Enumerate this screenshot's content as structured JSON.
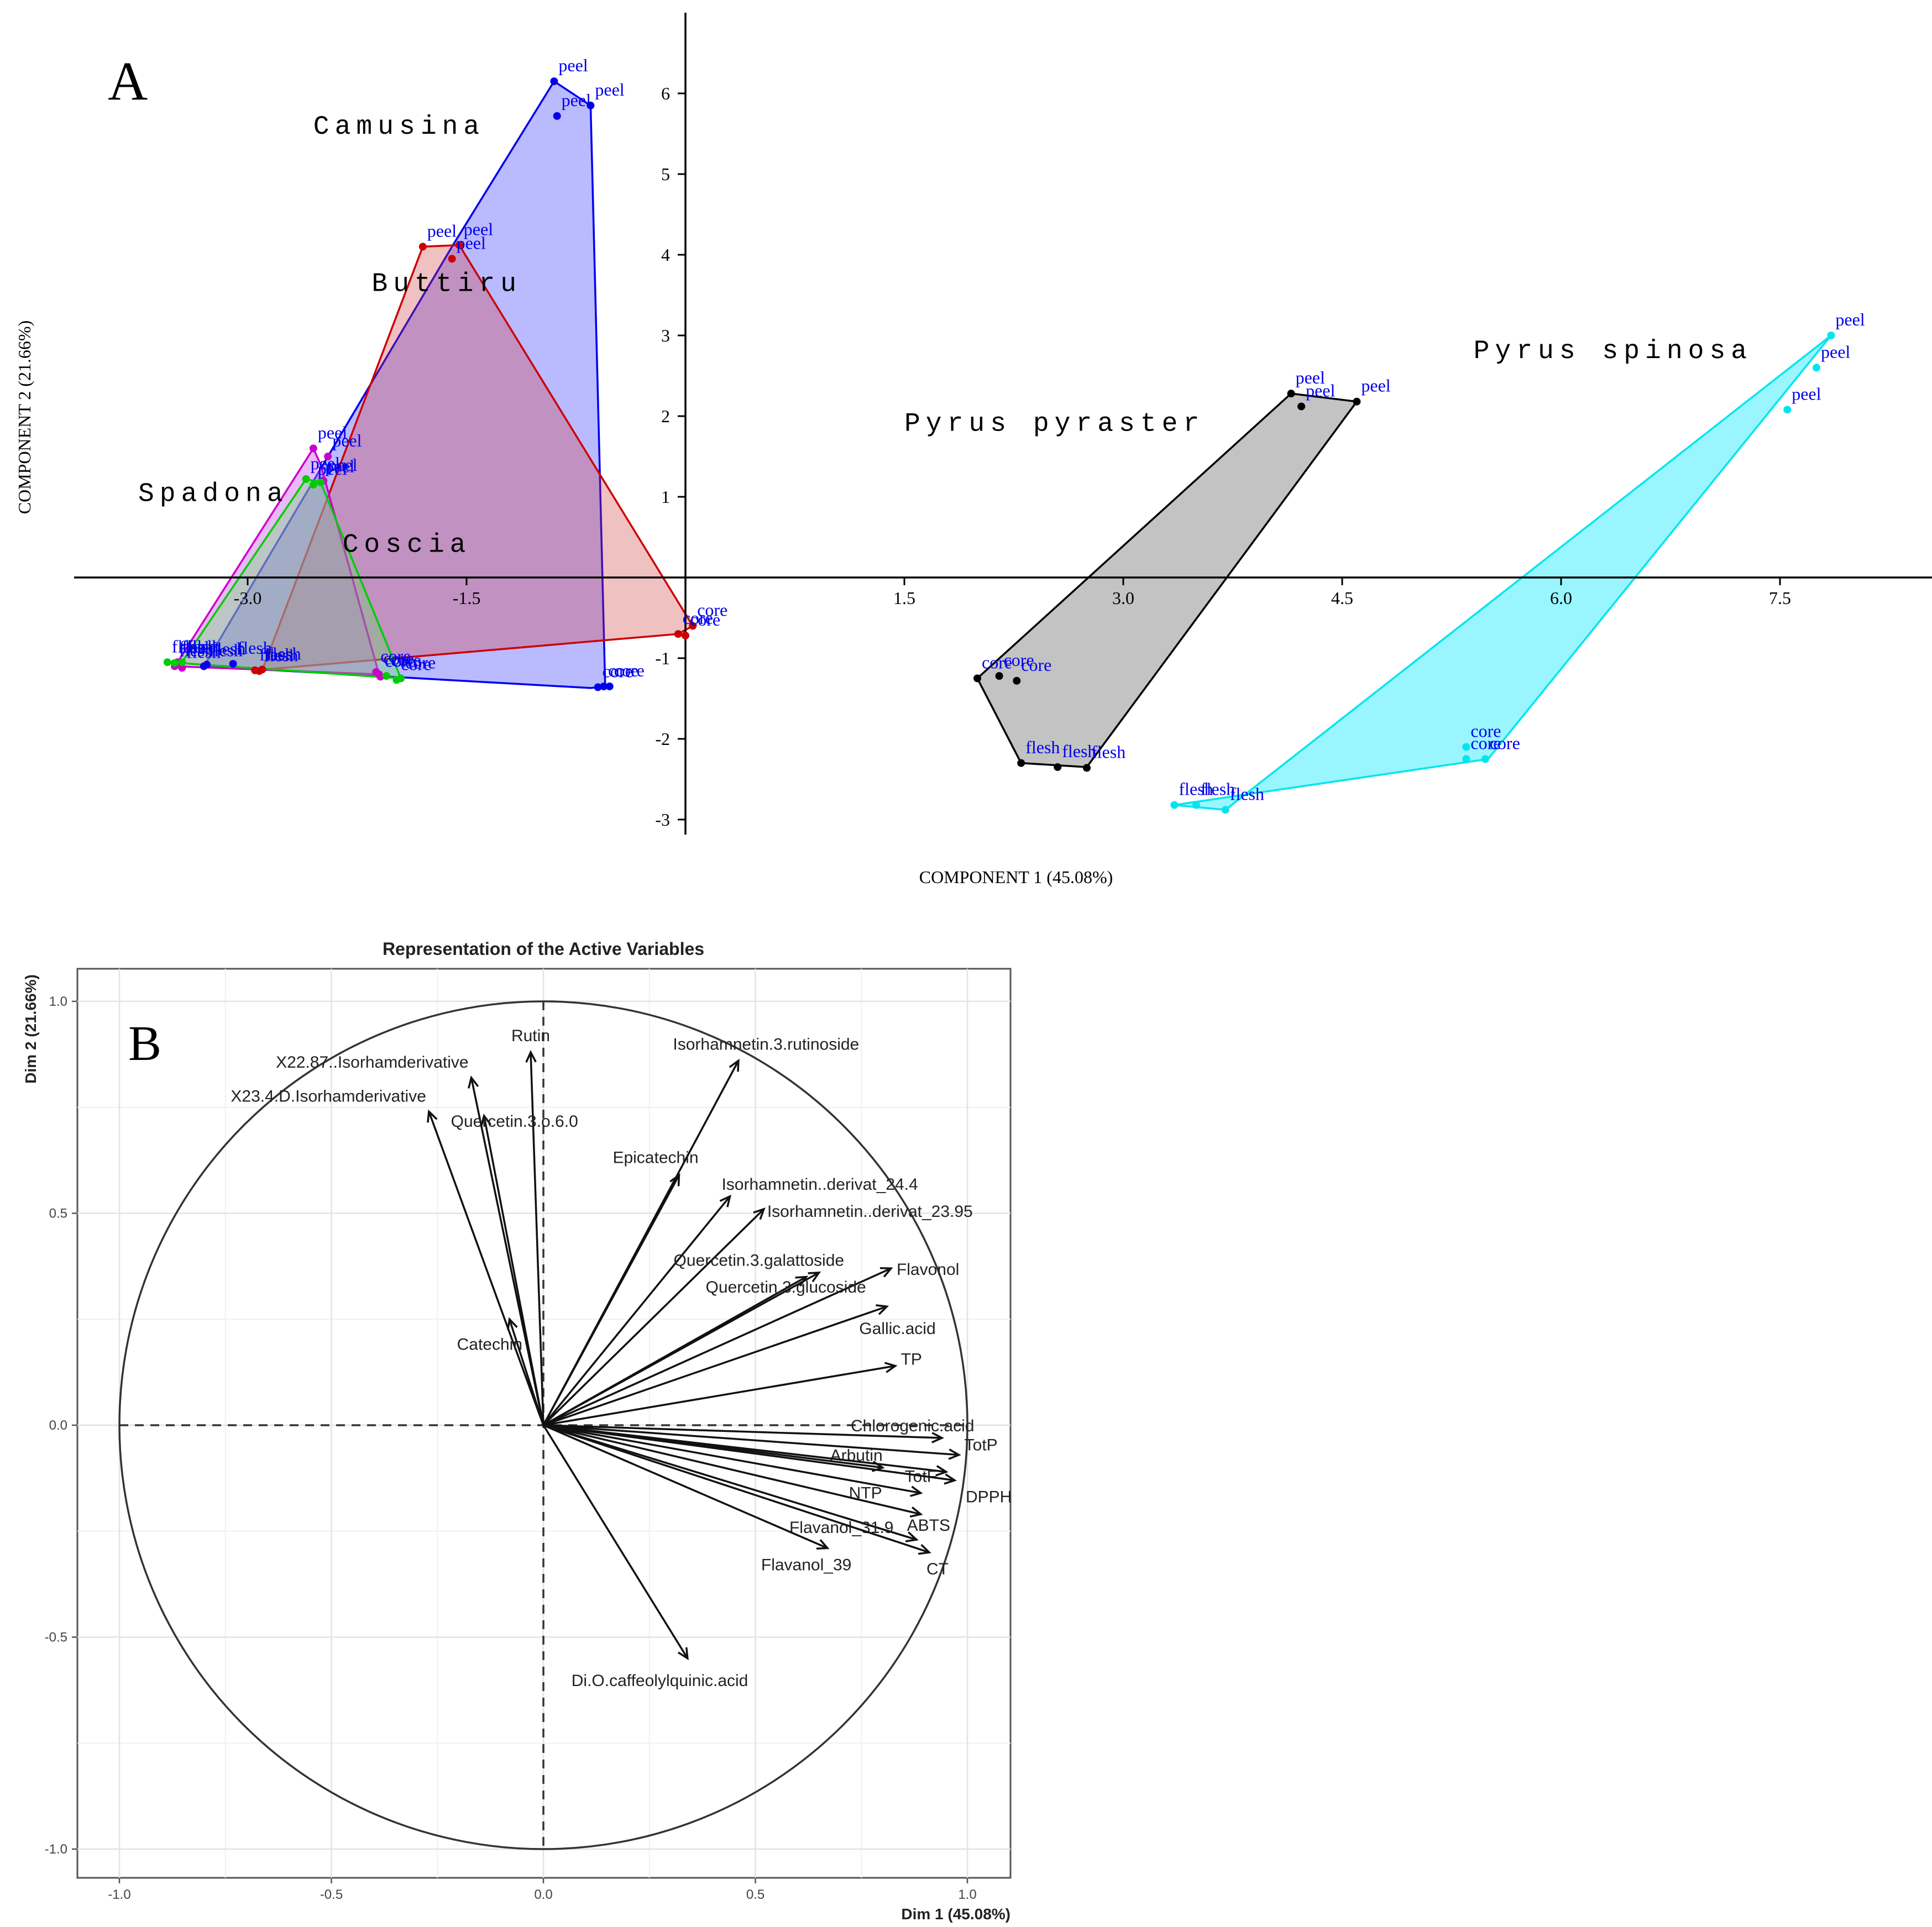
{
  "figure": {
    "panel_a_letter": "A",
    "panel_b_letter": "B"
  },
  "chart_data": [
    {
      "type": "scatter",
      "xlabel": "COMPONENT 1 (45.08%)",
      "ylabel": "COMPONENT 2 (21.66%)",
      "xlim": [
        -4.0,
        8.5
      ],
      "ylim": [
        -3.05,
        7.0
      ],
      "x_ticks": [
        -3.0,
        -1.5,
        1.5,
        3.0,
        4.5,
        6.0,
        7.5
      ],
      "x_tick_labels": [
        "-3.0",
        "-1.5",
        "1.5",
        "3.0",
        "4.5",
        "6.0",
        "7.5"
      ],
      "y_ticks": [
        -3,
        -2,
        -1,
        1,
        2,
        3,
        4,
        5,
        6
      ],
      "y_tick_labels": [
        "-3",
        "-2",
        "-1",
        "1",
        "2",
        "3",
        "4",
        "5",
        "6"
      ],
      "groups": [
        {
          "name": "Camusina",
          "color": "#0000ee",
          "fill": "#8c8cff",
          "fill_opacity": 0.6,
          "label_x": -2.55,
          "label_y": 5.5,
          "hull": [
            [
              -0.9,
              6.15
            ],
            [
              -0.65,
              5.85
            ],
            [
              -0.55,
              -1.35
            ],
            [
              -0.65,
              -1.37
            ],
            [
              -3.3,
              -1.1
            ],
            [
              -1.6,
              4.1
            ]
          ],
          "points": [
            {
              "x": -0.9,
              "y": 6.15,
              "label": "peel"
            },
            {
              "x": -0.65,
              "y": 5.85,
              "label": "peel"
            },
            {
              "x": -0.88,
              "y": 5.72,
              "label": "peel"
            },
            {
              "x": -0.6,
              "y": -1.36,
              "label": "core"
            },
            {
              "x": -0.56,
              "y": -1.35,
              "label": "core"
            },
            {
              "x": -0.52,
              "y": -1.35,
              "label": "core"
            },
            {
              "x": -3.3,
              "y": -1.1,
              "label": "flesh"
            },
            {
              "x": -3.28,
              "y": -1.08,
              "label": "flesh"
            },
            {
              "x": -3.1,
              "y": -1.07,
              "label": "flesh"
            }
          ]
        },
        {
          "name": "Buttiru",
          "color": "#cc0000",
          "fill": "#cc3333",
          "fill_opacity": 0.3,
          "label_x": -2.15,
          "label_y": 3.55,
          "hull": [
            [
              -1.8,
              4.1
            ],
            [
              -1.55,
              4.12
            ],
            [
              0.05,
              -0.6
            ],
            [
              -0.05,
              -0.7
            ],
            [
              -2.95,
              -1.15
            ],
            [
              -2.9,
              -1.15
            ]
          ],
          "points": [
            {
              "x": -1.8,
              "y": 4.1,
              "label": "peel"
            },
            {
              "x": -1.55,
              "y": 4.12,
              "label": "peel"
            },
            {
              "x": -1.6,
              "y": 3.95,
              "label": "peel"
            },
            {
              "x": 0.05,
              "y": -0.6,
              "label": "core"
            },
            {
              "x": -0.05,
              "y": -0.7,
              "label": "core"
            },
            {
              "x": 0.0,
              "y": -0.72,
              "label": "core"
            },
            {
              "x": -2.95,
              "y": -1.15,
              "label": "flesh"
            },
            {
              "x": -2.9,
              "y": -1.14,
              "label": "flesh"
            },
            {
              "x": -2.92,
              "y": -1.16,
              "label": "flesh"
            }
          ]
        },
        {
          "name": "Spadona",
          "color": "#cc00cc",
          "fill": "#cc66ee",
          "fill_opacity": 0.45,
          "label_x": -3.75,
          "label_y": 0.95,
          "hull": [
            [
              -2.55,
              1.6
            ],
            [
              -2.5,
              1.4
            ],
            [
              -2.1,
              -1.2
            ],
            [
              -3.5,
              -1.1
            ],
            [
              -3.48,
              -1.05
            ]
          ],
          "points": [
            {
              "x": -2.55,
              "y": 1.6,
              "label": "peel"
            },
            {
              "x": -2.45,
              "y": 1.5,
              "label": "peel"
            },
            {
              "x": -2.48,
              "y": 1.2,
              "label": "peel"
            },
            {
              "x": -2.1,
              "y": -1.2,
              "label": "core"
            },
            {
              "x": -2.12,
              "y": -1.17,
              "label": "core"
            },
            {
              "x": -2.09,
              "y": -1.23,
              "label": "core"
            },
            {
              "x": -3.5,
              "y": -1.1,
              "label": "flesh"
            },
            {
              "x": -3.48,
              "y": -1.05,
              "label": "flesh"
            },
            {
              "x": -3.45,
              "y": -1.12,
              "label": "flesh"
            }
          ]
        },
        {
          "name": "Coscia",
          "color": "#00cc00",
          "fill": "#66dd66",
          "fill_opacity": 0.35,
          "label_x": -2.35,
          "label_y": 0.32,
          "hull": [
            [
              -2.6,
              1.22
            ],
            [
              -2.5,
              1.18
            ],
            [
              -1.95,
              -1.25
            ],
            [
              -3.55,
              -1.05
            ],
            [
              -3.45,
              -1.05
            ]
          ],
          "points": [
            {
              "x": -2.6,
              "y": 1.22,
              "label": "peel"
            },
            {
              "x": -2.5,
              "y": 1.18,
              "label": "peel"
            },
            {
              "x": -2.55,
              "y": 1.15,
              "label": "peel"
            },
            {
              "x": -1.95,
              "y": -1.25,
              "label": "core"
            },
            {
              "x": -2.05,
              "y": -1.22,
              "label": "core"
            },
            {
              "x": -1.98,
              "y": -1.27,
              "label": "core"
            },
            {
              "x": -3.55,
              "y": -1.05,
              "label": "flesh"
            },
            {
              "x": -3.5,
              "y": -1.06,
              "label": "flesh"
            },
            {
              "x": -3.45,
              "y": -1.05,
              "label": "flesh"
            }
          ]
        },
        {
          "name": "Pyrus pyraster",
          "color": "#000000",
          "fill": "#7a7a7a",
          "fill_opacity": 0.45,
          "label_x": 1.5,
          "label_y": 1.82,
          "hull": [
            [
              4.15,
              2.28
            ],
            [
              4.6,
              2.18
            ],
            [
              2.75,
              -2.35
            ],
            [
              2.3,
              -2.3
            ],
            [
              2.0,
              -1.25
            ]
          ],
          "points": [
            {
              "x": 4.15,
              "y": 2.28,
              "label": "peel"
            },
            {
              "x": 4.6,
              "y": 2.18,
              "label": "peel"
            },
            {
              "x": 4.22,
              "y": 2.12,
              "label": "peel"
            },
            {
              "x": 2.0,
              "y": -1.25,
              "label": "core"
            },
            {
              "x": 2.15,
              "y": -1.22,
              "label": "core"
            },
            {
              "x": 2.27,
              "y": -1.28,
              "label": "core"
            },
            {
              "x": 2.3,
              "y": -2.3,
              "label": "flesh"
            },
            {
              "x": 2.55,
              "y": -2.35,
              "label": "flesh"
            },
            {
              "x": 2.75,
              "y": -2.36,
              "label": "flesh"
            }
          ]
        },
        {
          "name": "Pyrus spinosa",
          "color": "#00e5ee",
          "fill": "#33eeff",
          "fill_opacity": 0.5,
          "label_x": 5.4,
          "label_y": 2.72,
          "hull": [
            [
              7.85,
              3.0
            ],
            [
              5.5,
              -2.25
            ],
            [
              3.35,
              -2.82
            ],
            [
              3.7,
              -2.88
            ]
          ],
          "points": [
            {
              "x": 7.85,
              "y": 3.0,
              "label": "peel"
            },
            {
              "x": 7.75,
              "y": 2.6,
              "label": "peel"
            },
            {
              "x": 7.55,
              "y": 2.08,
              "label": "peel"
            },
            {
              "x": 5.35,
              "y": -2.1,
              "label": "core"
            },
            {
              "x": 5.35,
              "y": -2.25,
              "label": "core"
            },
            {
              "x": 5.48,
              "y": -2.25,
              "label": "core"
            },
            {
              "x": 3.35,
              "y": -2.82,
              "label": "flesh"
            },
            {
              "x": 3.5,
              "y": -2.82,
              "label": "flesh"
            },
            {
              "x": 3.7,
              "y": -2.88,
              "label": "flesh"
            }
          ]
        }
      ]
    },
    {
      "type": "biplot",
      "title": "Representation of the Active Variables",
      "xlabel": "Dim 1 (45.08%)",
      "ylabel": "Dim 2 (21.66%)",
      "xlim": [
        -1.1,
        1.1
      ],
      "ylim": [
        -1.1,
        1.1
      ],
      "ticks": [
        -1.0,
        -0.5,
        0.0,
        0.5,
        1.0
      ],
      "tick_labels": [
        "-1.0",
        "-0.5",
        "0.0",
        "0.5",
        "1.0"
      ],
      "grid": true,
      "variables": [
        {
          "name": "Rutin",
          "x": -0.03,
          "y": 0.88
        },
        {
          "name": "Isorhamnetin.3.rutinoside",
          "x": 0.46,
          "y": 0.86
        },
        {
          "name": "X22.87..Isorhamderivative",
          "x": -0.17,
          "y": 0.82
        },
        {
          "name": "X23.4.D.Isorhamderivative",
          "x": -0.27,
          "y": 0.74
        },
        {
          "name": "Quercetin.3.o.6.0",
          "x": -0.14,
          "y": 0.73
        },
        {
          "name": "Epicatechin",
          "x": 0.32,
          "y": 0.59
        },
        {
          "name": "Isorhamnetin..derivat_24.4",
          "x": 0.44,
          "y": 0.54
        },
        {
          "name": "Isorhamnetin..derivat_23.95",
          "x": 0.52,
          "y": 0.51
        },
        {
          "name": "Quercetin.3.galattoside",
          "x": 0.62,
          "y": 0.35
        },
        {
          "name": "Flavonol",
          "x": 0.82,
          "y": 0.37
        },
        {
          "name": "Quercetin.3.glucoside",
          "x": 0.65,
          "y": 0.36
        },
        {
          "name": "Gallic.acid",
          "x": 0.81,
          "y": 0.28
        },
        {
          "name": "TP",
          "x": 0.83,
          "y": 0.14
        },
        {
          "name": "Catechin",
          "x": -0.08,
          "y": 0.25
        },
        {
          "name": "Chlorogenic.acid",
          "x": 0.94,
          "y": -0.03
        },
        {
          "name": "TotP",
          "x": 0.98,
          "y": -0.07
        },
        {
          "name": "Arbutin",
          "x": 0.8,
          "y": -0.1
        },
        {
          "name": "TotF",
          "x": 0.95,
          "y": -0.11
        },
        {
          "name": "DPPH",
          "x": 0.97,
          "y": -0.13
        },
        {
          "name": "NTP",
          "x": 0.89,
          "y": -0.16
        },
        {
          "name": "ABTS",
          "x": 0.89,
          "y": -0.21
        },
        {
          "name": "Flavanol_31.9",
          "x": 0.88,
          "y": -0.27
        },
        {
          "name": "Flavanol_39",
          "x": 0.67,
          "y": -0.29
        },
        {
          "name": "CT",
          "x": 0.91,
          "y": -0.3
        },
        {
          "name": "Di.O.caffeolylquinic.acid",
          "x": 0.34,
          "y": -0.55
        }
      ]
    }
  ]
}
